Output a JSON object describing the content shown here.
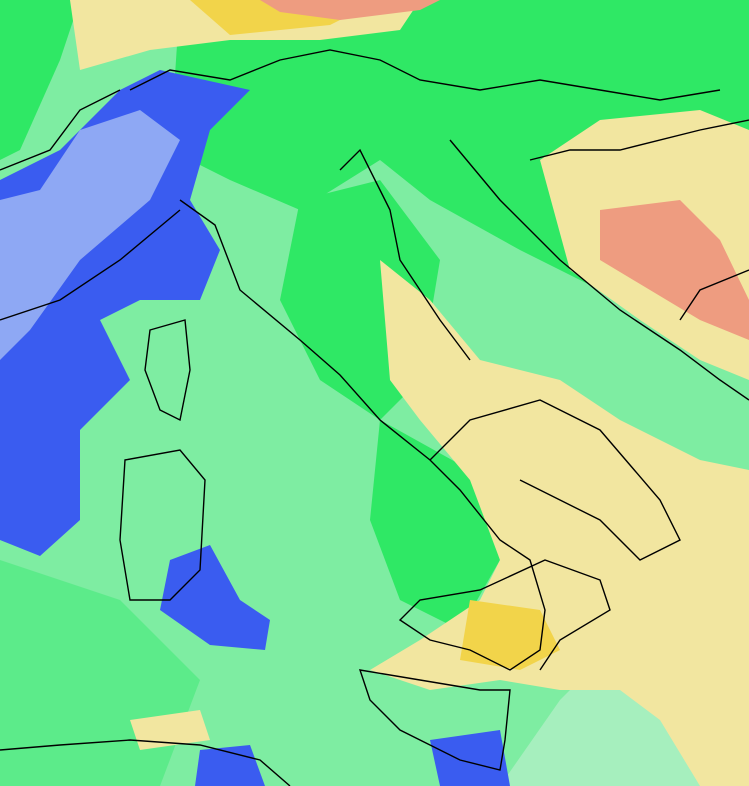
{
  "map": {
    "type": "weather-field-map",
    "region": "Italy",
    "colors": {
      "sea_light_green": "#a6efbe",
      "mid_green": "#5ceb8a",
      "bright_green": "#2fe865",
      "blue": "#3a5cf0",
      "light_blue": "#8ea8f4",
      "pale_yellow": "#f2e6a0",
      "yellow": "#f2d44a",
      "salmon": "#ee9c80",
      "border": "#000000"
    },
    "areas": [
      {
        "kind": "low",
        "color": "blue"
      },
      {
        "kind": "neutral",
        "color": "green"
      },
      {
        "kind": "high",
        "color": "yellow"
      },
      {
        "kind": "very-high",
        "color": "salmon"
      }
    ]
  }
}
